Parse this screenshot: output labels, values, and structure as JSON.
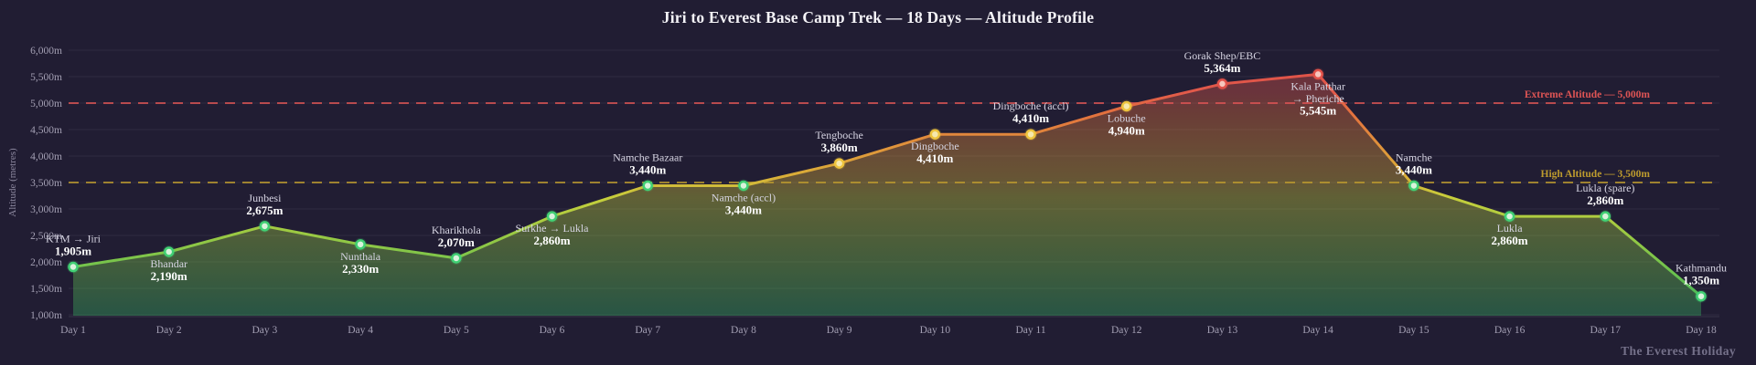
{
  "watermark": "The Everest Holiday",
  "chart_data": {
    "type": "line",
    "title": "Jiri to Everest Base Camp Trek — 18 Days — Altitude Profile",
    "xlabel": "",
    "ylabel": "Altitude (metres)",
    "ylim": [
      1000,
      6000
    ],
    "y_tick_step": 500,
    "grid": true,
    "x_ticks": [
      "Day 1",
      "Day 2",
      "Day 3",
      "Day 4",
      "Day 5",
      "Day 6",
      "Day 7",
      "Day 8",
      "Day 9",
      "Day 10",
      "Day 11",
      "Day 12",
      "Day 13",
      "Day 14",
      "Day 15",
      "Day 16",
      "Day 17",
      "Day 18"
    ],
    "y_ticks": [
      {
        "value": 1000,
        "label": "1,000m"
      },
      {
        "value": 1500,
        "label": "1,500m"
      },
      {
        "value": 2000,
        "label": "2,000m"
      },
      {
        "value": 2500,
        "label": "2,500m"
      },
      {
        "value": 3000,
        "label": "3,000m"
      },
      {
        "value": 3500,
        "label": "3,500m"
      },
      {
        "value": 4000,
        "label": "4,000m"
      },
      {
        "value": 4500,
        "label": "4,500m"
      },
      {
        "value": 5000,
        "label": "5,000m"
      },
      {
        "value": 5500,
        "label": "5,500m"
      },
      {
        "value": 6000,
        "label": "6,000m"
      }
    ],
    "series": [
      {
        "name": "Altitude",
        "points": [
          {
            "day": 1,
            "name_lines": [
              "KTM → Jiri"
            ],
            "value_label": "1,905m",
            "altitude": 1905,
            "tier": "low",
            "label_pos": "above"
          },
          {
            "day": 2,
            "name_lines": [
              "Bhandar"
            ],
            "value_label": "2,190m",
            "altitude": 2190,
            "tier": "low",
            "label_pos": "below"
          },
          {
            "day": 3,
            "name_lines": [
              "Junbesi"
            ],
            "value_label": "2,675m",
            "altitude": 2675,
            "tier": "low",
            "label_pos": "above"
          },
          {
            "day": 4,
            "name_lines": [
              "Nunthala"
            ],
            "value_label": "2,330m",
            "altitude": 2330,
            "tier": "low",
            "label_pos": "below"
          },
          {
            "day": 5,
            "name_lines": [
              "Kharikhola"
            ],
            "value_label": "2,070m",
            "altitude": 2070,
            "tier": "low",
            "label_pos": "above"
          },
          {
            "day": 6,
            "name_lines": [
              "Surkhe → Lukla"
            ],
            "value_label": "2,860m",
            "altitude": 2860,
            "tier": "low",
            "label_pos": "below"
          },
          {
            "day": 7,
            "name_lines": [
              "Namche Bazaar"
            ],
            "value_label": "3,440m",
            "altitude": 3440,
            "tier": "low",
            "label_pos": "above"
          },
          {
            "day": 8,
            "name_lines": [
              "Namche (accl)"
            ],
            "value_label": "3,440m",
            "altitude": 3440,
            "tier": "low",
            "label_pos": "below"
          },
          {
            "day": 9,
            "name_lines": [
              "Tengboche"
            ],
            "value_label": "3,860m",
            "altitude": 3860,
            "tier": "mid",
            "label_pos": "above"
          },
          {
            "day": 10,
            "name_lines": [
              "Dingboche"
            ],
            "value_label": "4,410m",
            "altitude": 4410,
            "tier": "mid",
            "label_pos": "below"
          },
          {
            "day": 11,
            "name_lines": [
              "Dingboche (accl)"
            ],
            "value_label": "4,410m",
            "altitude": 4410,
            "tier": "mid",
            "label_pos": "above"
          },
          {
            "day": 12,
            "name_lines": [
              "Lobuche"
            ],
            "value_label": "4,940m",
            "altitude": 4940,
            "tier": "mid",
            "label_pos": "below"
          },
          {
            "day": 13,
            "name_lines": [
              "Gorak Shep/EBC"
            ],
            "value_label": "5,364m",
            "altitude": 5364,
            "tier": "high",
            "label_pos": "above"
          },
          {
            "day": 14,
            "name_lines": [
              "Kala Patthar",
              "→ Pheriche"
            ],
            "value_label": "5,545m",
            "altitude": 5545,
            "tier": "high",
            "label_pos": "below"
          },
          {
            "day": 15,
            "name_lines": [
              "Namche"
            ],
            "value_label": "3,440m",
            "altitude": 3440,
            "tier": "low",
            "label_pos": "above"
          },
          {
            "day": 16,
            "name_lines": [
              "Lukla"
            ],
            "value_label": "2,860m",
            "altitude": 2860,
            "tier": "low",
            "label_pos": "below"
          },
          {
            "day": 17,
            "name_lines": [
              "Lukla (spare)"
            ],
            "value_label": "2,860m",
            "altitude": 2860,
            "tier": "low",
            "label_pos": "above"
          },
          {
            "day": 18,
            "name_lines": [
              "Kathmandu"
            ],
            "value_label": "1,350m",
            "altitude": 1350,
            "tier": "low",
            "label_pos": "above"
          }
        ]
      }
    ],
    "reference_lines": [
      {
        "label": "Extreme Altitude — 5,000m",
        "value": 5000,
        "color": "#dd5454"
      },
      {
        "label": "High Altitude — 3,500m",
        "value": 3500,
        "color": "#bd9b2e"
      }
    ],
    "colors": {
      "background": "#211d33",
      "grid": "rgba(255,255,255,0.07)",
      "axis_line": "rgba(255,255,255,0.10)",
      "tick_text": "#a39fb3",
      "point_name_text": "#d6d4e2",
      "point_value_text": "#ffffff",
      "marker_stroke": {
        "low": "#41d074",
        "mid": "#eec43e",
        "high": "#e2524a"
      },
      "marker_fill": {
        "low": "#d9f3dc",
        "mid": "#f6e8ad",
        "high": "#f6c6bd"
      },
      "line_gradient": [
        {
          "alt": 1000,
          "color": "#35b060"
        },
        {
          "alt": 1800,
          "color": "#6cc24e"
        },
        {
          "alt": 2600,
          "color": "#9fca42"
        },
        {
          "alt": 3200,
          "color": "#c6cf3c"
        },
        {
          "alt": 3600,
          "color": "#d9af38"
        },
        {
          "alt": 4200,
          "color": "#e0923b"
        },
        {
          "alt": 4800,
          "color": "#e2713e"
        },
        {
          "alt": 5200,
          "color": "#e15a4a"
        },
        {
          "alt": 6000,
          "color": "#df4b47"
        }
      ],
      "fill_opacity": 0.38
    }
  }
}
